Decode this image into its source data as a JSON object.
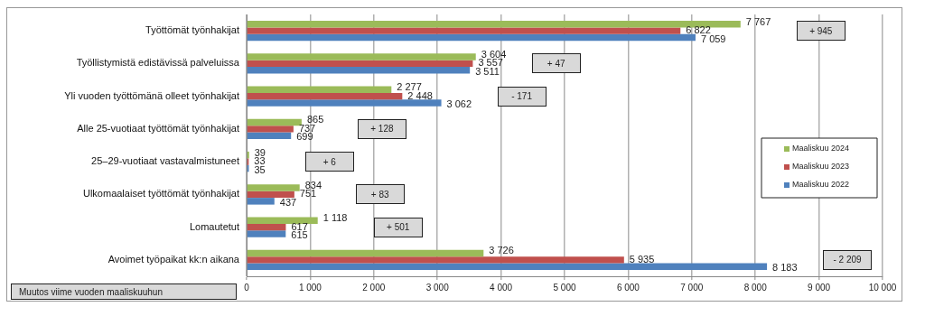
{
  "chart_data": {
    "type": "bar",
    "orientation": "horizontal",
    "categories": [
      "Työttömät työnhakijat",
      "Työllistymistä edistävissä palveluissa",
      "Yli vuoden työttömänä olleet työnhakijat",
      "Alle 25-vuotiaat työttömät työnhakijat",
      "25–29-vuotiaat vastavalmistuneet",
      "Ulkomaalaiset työttömät työnhakijat",
      "Lomautetut",
      "Avoimet työpaikat kk:n aikana"
    ],
    "series": [
      {
        "name": "Maaliskuu 2024",
        "color": "#9bbb59",
        "values": [
          7767,
          3604,
          2277,
          865,
          39,
          834,
          1118,
          3726
        ]
      },
      {
        "name": "Maaliskuu 2023",
        "color": "#c0504d",
        "values": [
          6822,
          3557,
          2448,
          737,
          33,
          751,
          617,
          5935
        ]
      },
      {
        "name": "Maaliskuu 2022",
        "color": "#4f81bd",
        "values": [
          7059,
          3511,
          3062,
          699,
          35,
          437,
          615,
          8183
        ]
      }
    ],
    "xlim": [
      0,
      10000
    ],
    "xticks": [
      {
        "value": 0,
        "label": "0"
      },
      {
        "value": 1000,
        "label": "1 000"
      },
      {
        "value": 2000,
        "label": "2 000"
      },
      {
        "value": 3000,
        "label": "3 000"
      },
      {
        "value": 4000,
        "label": "4 000"
      },
      {
        "value": 5000,
        "label": "5 000"
      },
      {
        "value": 6000,
        "label": "6 000"
      },
      {
        "value": 7000,
        "label": "7 000"
      },
      {
        "value": 8000,
        "label": "8 000"
      },
      {
        "value": 9000,
        "label": "9 000"
      },
      {
        "value": 10000,
        "label": "10 000"
      }
    ],
    "data_labels": true,
    "grid": "x",
    "legend": "right",
    "annotations": [
      "+ 945",
      "+ 47",
      "- 171",
      "+ 128",
      "+ 6",
      "+ 83",
      "+ 501",
      "- 2 209",
      "Muutos viime vuoden maaliskuuhun"
    ]
  }
}
